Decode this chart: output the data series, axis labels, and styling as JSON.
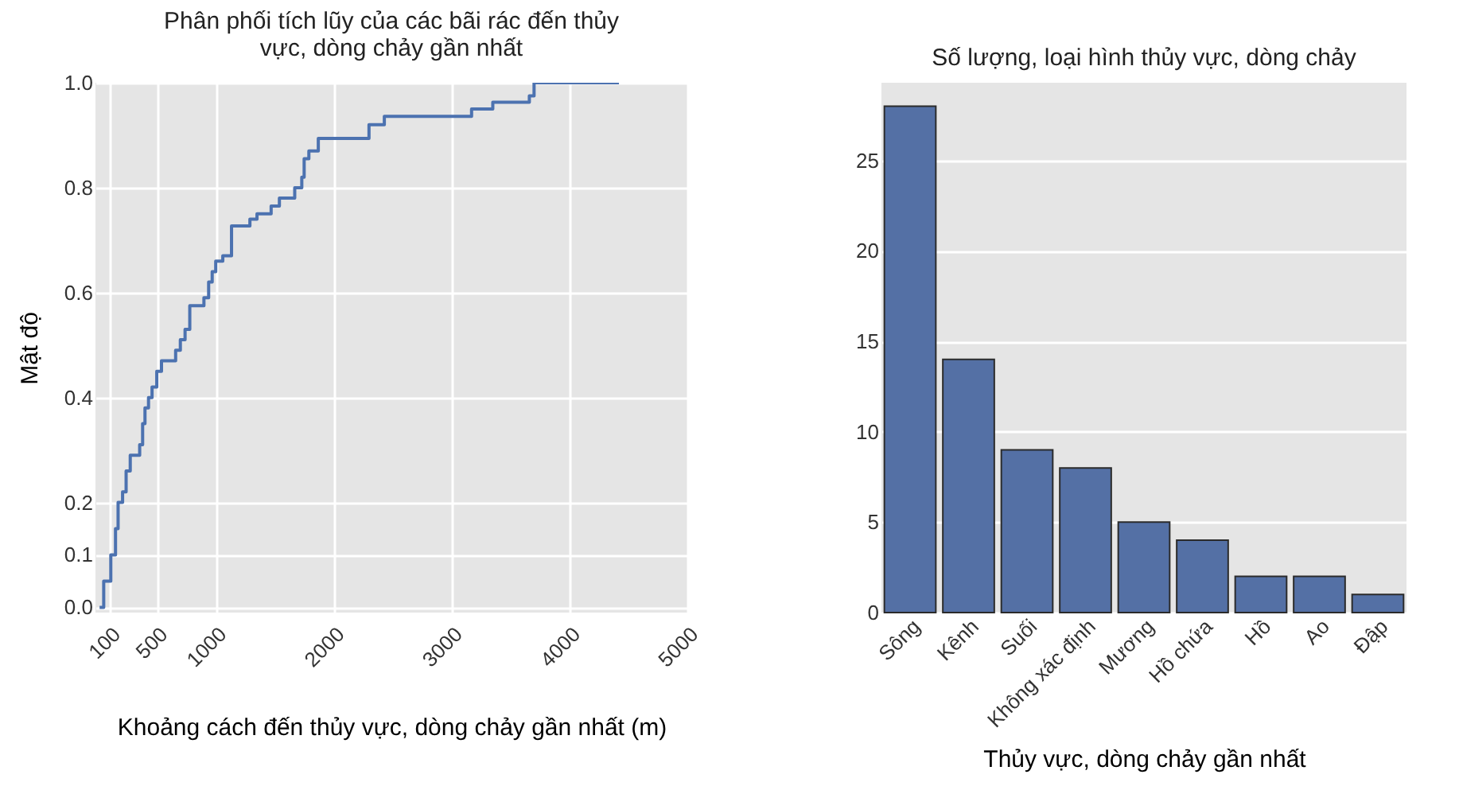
{
  "chart_data": [
    {
      "type": "step",
      "title": "Phân phối tích lũy của các bãi rác đến thủy vực, dòng chảy gần nhất",
      "xlabel": "Khoảng cách đến thủy vực, dòng chảy gần nhất (m)",
      "ylabel": "Mật độ",
      "x": [
        15,
        50,
        110,
        150,
        172,
        210,
        240,
        275,
        355,
        380,
        400,
        430,
        460,
        500,
        540,
        660,
        700,
        740,
        780,
        900,
        940,
        970,
        1000,
        1060,
        1134,
        1290,
        1350,
        1470,
        1540,
        1670,
        1730,
        1750,
        1790,
        1870,
        2300,
        2430,
        3170,
        3350,
        3660,
        3700,
        4420
      ],
      "series": [
        {
          "color": "#4c72b0",
          "values": [
            0,
            0.05,
            0.1,
            0.15,
            0.2,
            0.22,
            0.26,
            0.29,
            0.31,
            0.35,
            0.38,
            0.4,
            0.42,
            0.45,
            0.47,
            0.49,
            0.51,
            0.53,
            0.575,
            0.59,
            0.62,
            0.64,
            0.66,
            0.67,
            0.727,
            0.74,
            0.75,
            0.765,
            0.78,
            0.8,
            0.82,
            0.855,
            0.87,
            0.894,
            0.92,
            0.936,
            0.95,
            0.963,
            0.975,
            1.0,
            1.0
          ]
        }
      ],
      "xlim": [
        -20,
        5000
      ],
      "xticks": [
        100,
        500,
        1000,
        2000,
        3000,
        4000,
        5000
      ],
      "ylim": [
        -0.01,
        1.0
      ],
      "yticks": [
        {
          "value": 0,
          "label": "0.0"
        },
        0.1,
        0.2,
        0.4,
        0.6,
        0.8,
        {
          "value": 1,
          "label": "1.0"
        }
      ],
      "grid": true
    },
    {
      "type": "bar",
      "title": "Số lượng, loại hình thủy vực, dòng chảy",
      "xlabel": "Thủy vực, dòng chảy gần nhất",
      "categories": [
        "Sông",
        "Kênh",
        "Suối",
        "Không xác định",
        "Mương",
        "Hồ chứa",
        "Hồ",
        "Ao",
        "Đập"
      ],
      "values": [
        28,
        14,
        9,
        8,
        5,
        4,
        2,
        2,
        1
      ],
      "color": "#5470a5",
      "ylim": [
        0,
        29.3
      ],
      "yticks": [
        0,
        5,
        10,
        15,
        20,
        25
      ],
      "grid": "y"
    }
  ]
}
